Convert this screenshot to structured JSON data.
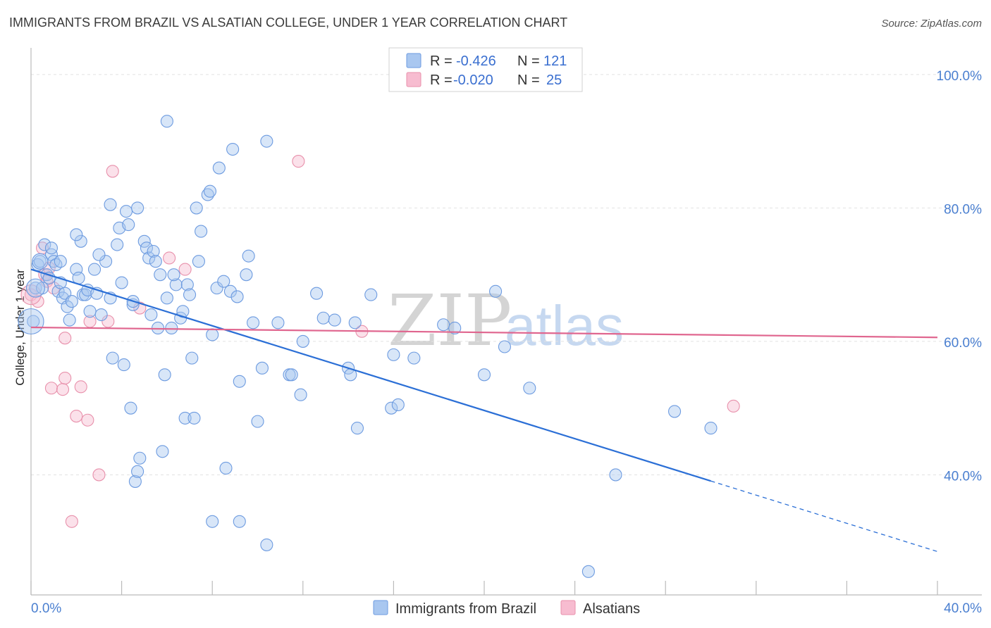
{
  "header": {
    "title": "IMMIGRANTS FROM BRAZIL VS ALSATIAN COLLEGE, UNDER 1 YEAR CORRELATION CHART",
    "source": "Source: ZipAtlas.com"
  },
  "watermark": {
    "part1": "ZIP",
    "part2": "atlas"
  },
  "legend": {
    "rows": [
      {
        "r_label": "R =",
        "r_value": "-0.426",
        "n_label": "N =",
        "n_value": "121",
        "color": "#a9c7f0",
        "stroke": "#6d9be0"
      },
      {
        "r_label": "R =",
        "r_value": "-0.020",
        "n_label": "N =",
        "n_value": "25",
        "color": "#f7bcd0",
        "stroke": "#e890ab"
      }
    ]
  },
  "bottom_legend": {
    "items": [
      {
        "label": "Immigrants from Brazil",
        "color": "#a9c7f0",
        "stroke": "#6d9be0"
      },
      {
        "label": "Alsatians",
        "color": "#f7bcd0",
        "stroke": "#e890ab"
      }
    ]
  },
  "chart_data": {
    "type": "scatter",
    "title": "IMMIGRANTS FROM BRAZIL VS ALSATIAN COLLEGE, UNDER 1 YEAR CORRELATION CHART",
    "xlabel": "",
    "ylabel": "College, Under 1 year",
    "xlim": [
      0,
      40
    ],
    "ylim": [
      22,
      104
    ],
    "x_tick_labels": [
      "0.0%",
      "40.0%"
    ],
    "y_ticks": [
      {
        "value": 100,
        "label": "100.0%"
      },
      {
        "value": 80,
        "label": "80.0%"
      },
      {
        "value": 60,
        "label": "60.0%"
      },
      {
        "value": 40,
        "label": "40.0%"
      }
    ],
    "series": [
      {
        "name": "Immigrants from Brazil",
        "color": "#a9c7f0",
        "stroke": "#6d9be0",
        "trend": {
          "x0": 0,
          "y0": 70.8,
          "x1": 40,
          "y1": 28.5,
          "solid_until": 30
        },
        "points": [
          [
            0.1,
            63
          ],
          [
            0.2,
            68
          ],
          [
            0.3,
            71.5
          ],
          [
            0.4,
            72
          ],
          [
            0.5,
            68
          ],
          [
            0.6,
            74.5
          ],
          [
            0.7,
            70
          ],
          [
            0.8,
            69.5
          ],
          [
            0.9,
            73
          ],
          [
            1.0,
            72
          ],
          [
            1.1,
            71.5
          ],
          [
            1.2,
            67.5
          ],
          [
            1.3,
            68.8
          ],
          [
            1.4,
            66.5
          ],
          [
            1.5,
            67.2
          ],
          [
            1.6,
            65.2
          ],
          [
            1.7,
            63.2
          ],
          [
            1.8,
            66
          ],
          [
            2.0,
            70.8
          ],
          [
            2.1,
            69.5
          ],
          [
            2.2,
            75
          ],
          [
            2.3,
            67
          ],
          [
            2.4,
            67
          ],
          [
            2.6,
            64.5
          ],
          [
            2.5,
            67.7
          ],
          [
            2.8,
            70.8
          ],
          [
            2.9,
            67.2
          ],
          [
            3.1,
            64
          ],
          [
            3.3,
            72
          ],
          [
            3.5,
            66.5
          ],
          [
            3.6,
            57.5
          ],
          [
            3.9,
            77
          ],
          [
            3.8,
            74.5
          ],
          [
            4.0,
            68.8
          ],
          [
            4.1,
            56.5
          ],
          [
            4.2,
            79.5
          ],
          [
            4.3,
            77.5
          ],
          [
            4.4,
            50
          ],
          [
            4.5,
            65.5
          ],
          [
            4.7,
            80
          ],
          [
            3.5,
            80.5
          ],
          [
            4.6,
            39
          ],
          [
            4.7,
            40.5
          ],
          [
            4.8,
            42.5
          ],
          [
            4.5,
            66
          ],
          [
            5.0,
            75
          ],
          [
            5.1,
            74
          ],
          [
            5.2,
            72.5
          ],
          [
            5.3,
            64
          ],
          [
            5.4,
            73.5
          ],
          [
            5.5,
            72
          ],
          [
            5.6,
            62
          ],
          [
            5.7,
            70
          ],
          [
            5.8,
            43.5
          ],
          [
            5.9,
            55
          ],
          [
            6.0,
            66.5
          ],
          [
            6.2,
            62
          ],
          [
            6.4,
            68.5
          ],
          [
            6.6,
            63.5
          ],
          [
            6.7,
            64.5
          ],
          [
            6.8,
            48.5
          ],
          [
            6.9,
            68.5
          ],
          [
            6.0,
            93
          ],
          [
            7.1,
            57.5
          ],
          [
            7.2,
            48.5
          ],
          [
            7.3,
            80
          ],
          [
            7.5,
            76.5
          ],
          [
            7.4,
            72
          ],
          [
            7.8,
            82
          ],
          [
            7.9,
            82.5
          ],
          [
            8.0,
            61
          ],
          [
            8.2,
            68
          ],
          [
            8.3,
            86
          ],
          [
            8.5,
            69
          ],
          [
            8.6,
            41
          ],
          [
            8.8,
            67.5
          ],
          [
            8.9,
            88.8
          ],
          [
            9.1,
            66.7
          ],
          [
            9.2,
            54
          ],
          [
            9.2,
            33
          ],
          [
            9.6,
            72.8
          ],
          [
            9.8,
            62.8
          ],
          [
            10.0,
            48
          ],
          [
            10.2,
            56
          ],
          [
            10.4,
            90
          ],
          [
            10.4,
            29.5
          ],
          [
            10.9,
            62.8
          ],
          [
            11.4,
            55
          ],
          [
            11.5,
            55
          ],
          [
            11.9,
            52
          ],
          [
            12.6,
            67.2
          ],
          [
            12.9,
            63.5
          ],
          [
            13.4,
            63.2
          ],
          [
            14.0,
            56
          ],
          [
            14.1,
            55
          ],
          [
            14.3,
            62.8
          ],
          [
            14.4,
            47
          ],
          [
            15.0,
            67
          ],
          [
            15.9,
            50
          ],
          [
            16.2,
            50.5
          ],
          [
            16.9,
            57.5
          ],
          [
            18.2,
            62.5
          ],
          [
            18.7,
            62
          ],
          [
            20.0,
            55
          ],
          [
            20.5,
            67.5
          ],
          [
            20.9,
            59.2
          ],
          [
            24.6,
            25.5
          ],
          [
            25.8,
            40
          ],
          [
            28.4,
            49.5
          ],
          [
            8.0,
            33
          ],
          [
            1.3,
            72
          ],
          [
            3.0,
            73
          ],
          [
            2.0,
            76
          ],
          [
            0.9,
            74
          ],
          [
            6.3,
            70
          ],
          [
            7.0,
            67
          ],
          [
            9.5,
            70
          ],
          [
            12.0,
            60
          ],
          [
            16.0,
            58
          ],
          [
            22.0,
            53
          ],
          [
            30.0,
            47
          ]
        ]
      },
      {
        "name": "Alsatians",
        "color": "#f7bcd0",
        "stroke": "#e890ab",
        "trend": {
          "x0": 0,
          "y0": 62.1,
          "x1": 40,
          "y1": 60.6
        },
        "points": [
          [
            0.0,
            67
          ],
          [
            0.3,
            66
          ],
          [
            0.5,
            74
          ],
          [
            0.6,
            70
          ],
          [
            0.7,
            69
          ],
          [
            0.8,
            71
          ],
          [
            1.0,
            68
          ],
          [
            1.5,
            60.5
          ],
          [
            0.9,
            53
          ],
          [
            1.4,
            52.8
          ],
          [
            1.5,
            54.5
          ],
          [
            2.0,
            48.8
          ],
          [
            2.2,
            53.2
          ],
          [
            2.5,
            48.2
          ],
          [
            2.6,
            63
          ],
          [
            3.0,
            40
          ],
          [
            3.4,
            63
          ],
          [
            3.6,
            85.5
          ],
          [
            1.8,
            33
          ],
          [
            4.8,
            65
          ],
          [
            6.1,
            72.5
          ],
          [
            6.8,
            70.8
          ],
          [
            11.8,
            87
          ],
          [
            14.6,
            61.5
          ],
          [
            31.0,
            50.3
          ]
        ]
      }
    ]
  }
}
